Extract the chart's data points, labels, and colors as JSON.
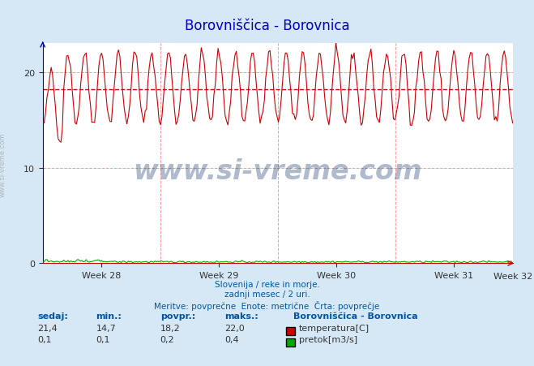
{
  "title": "Borovniščica - Borovnica",
  "title_color": "#0000cc",
  "bg_color": "#d6e8f5",
  "plot_bg_color": "#ffffff",
  "grid_color": "#ff9999",
  "grid_style": "--",
  "x_weeks": [
    "Week 28",
    "Week 29",
    "Week 30",
    "Week 31",
    "Week 32"
  ],
  "ylim": [
    0,
    23
  ],
  "xlim_days": [
    0,
    28
  ],
  "temp_min": 14.7,
  "temp_max": 22.0,
  "temp_avg": 18.2,
  "temp_current": 21.4,
  "flow_min": 0.1,
  "flow_max": 0.4,
  "flow_avg": 0.2,
  "flow_current": 0.1,
  "temp_color": "#cc0000",
  "flow_color": "#00aa00",
  "avg_line_color": "#cc0000",
  "subtitle_lines": [
    "Slovenija / reke in morje.",
    "zadnji mesec / 2 uri.",
    "Meritve: povprečne  Enote: metrične  Črta: povprečje"
  ],
  "footer_color": "#0055aa",
  "legend_title": "Borovniščica - Borovnica",
  "legend_items": [
    "temperatura[C]",
    "pretok[m3/s]"
  ],
  "legend_colors": [
    "#cc0000",
    "#00aa00"
  ],
  "table_headers": [
    "sedaj:",
    "min.:",
    "povpr.:",
    "maks.:"
  ],
  "table_row1": [
    "21,4",
    "14,7",
    "18,2",
    "22,0"
  ],
  "table_row2": [
    "0,1",
    "0,1",
    "0,2",
    "0,4"
  ],
  "watermark_text": "www.si-vreme.com",
  "watermark_color": "#1a3a6e",
  "watermark_alpha": 0.35
}
